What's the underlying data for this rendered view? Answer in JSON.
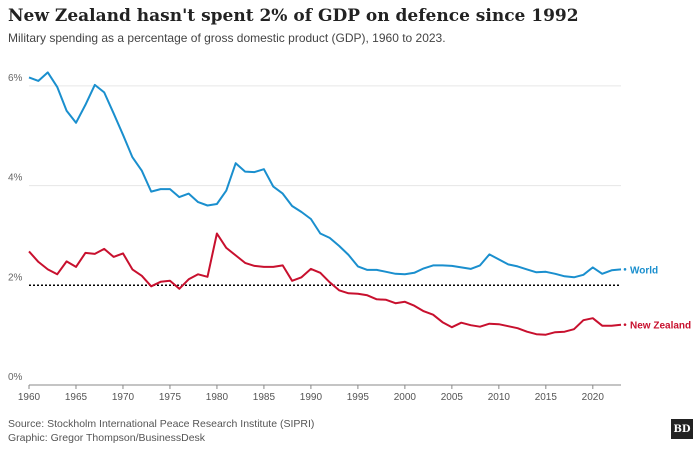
{
  "title": "New Zealand hasn't spent 2% of GDP on defence since 1992",
  "subtitle": "Military spending as a percentage of gross domestic product (GDP), 1960 to 2023.",
  "source": "Source: Stockholm International Peace Research Institute (SIPRI)",
  "graphic": "Graphic: Gregor Thompson/BusinessDesk",
  "logo": "BD",
  "colors": {
    "world": "#1a8fce",
    "nz": "#c8102e",
    "reference": "#000000",
    "grid": "#e6e6e6"
  },
  "chart_data": {
    "type": "line",
    "title": "New Zealand hasn't spent 2% of GDP on defence since 1992",
    "xlabel": "",
    "ylabel": "",
    "xlim": [
      1960,
      2023
    ],
    "ylim": [
      0,
      6.6
    ],
    "grid": true,
    "x_ticks": [
      1960,
      1965,
      1970,
      1975,
      1980,
      1985,
      1990,
      1995,
      2000,
      2005,
      2010,
      2015,
      2020
    ],
    "y_ticks": [
      {
        "value": 0,
        "label": "0%"
      },
      {
        "value": 2,
        "label": "2%"
      },
      {
        "value": 4,
        "label": "4%"
      },
      {
        "value": 6,
        "label": "6%"
      }
    ],
    "reference_line": 2,
    "x": [
      1960,
      1961,
      1962,
      1963,
      1964,
      1965,
      1966,
      1967,
      1968,
      1969,
      1970,
      1971,
      1972,
      1973,
      1974,
      1975,
      1976,
      1977,
      1978,
      1979,
      1980,
      1981,
      1982,
      1983,
      1984,
      1985,
      1986,
      1987,
      1988,
      1989,
      1990,
      1991,
      1992,
      1993,
      1994,
      1995,
      1996,
      1997,
      1998,
      1999,
      2000,
      2001,
      2002,
      2003,
      2004,
      2005,
      2006,
      2007,
      2008,
      2009,
      2010,
      2011,
      2012,
      2013,
      2014,
      2015,
      2016,
      2017,
      2018,
      2019,
      2020,
      2021,
      2022,
      2023
    ],
    "series": [
      {
        "name": "World",
        "color": "#1a8fce",
        "values": [
          6.17,
          6.1,
          6.27,
          5.98,
          5.5,
          5.26,
          5.62,
          6.02,
          5.87,
          5.45,
          5.02,
          4.57,
          4.3,
          3.88,
          3.93,
          3.93,
          3.77,
          3.84,
          3.67,
          3.6,
          3.63,
          3.9,
          4.45,
          4.28,
          4.27,
          4.33,
          3.98,
          3.84,
          3.59,
          3.47,
          3.33,
          3.04,
          2.95,
          2.79,
          2.61,
          2.38,
          2.31,
          2.31,
          2.27,
          2.23,
          2.22,
          2.25,
          2.34,
          2.4,
          2.4,
          2.39,
          2.36,
          2.33,
          2.4,
          2.62,
          2.52,
          2.42,
          2.38,
          2.32,
          2.26,
          2.27,
          2.23,
          2.18,
          2.16,
          2.21,
          2.36,
          2.23,
          2.3,
          2.32
        ]
      },
      {
        "name": "New Zealand",
        "color": "#c8102e",
        "values": [
          2.68,
          2.47,
          2.32,
          2.22,
          2.48,
          2.37,
          2.65,
          2.63,
          2.73,
          2.57,
          2.64,
          2.32,
          2.19,
          1.98,
          2.07,
          2.09,
          1.93,
          2.12,
          2.22,
          2.17,
          3.04,
          2.75,
          2.6,
          2.45,
          2.39,
          2.37,
          2.37,
          2.4,
          2.09,
          2.16,
          2.33,
          2.25,
          2.06,
          1.9,
          1.84,
          1.83,
          1.8,
          1.72,
          1.71,
          1.64,
          1.67,
          1.59,
          1.48,
          1.41,
          1.26,
          1.16,
          1.25,
          1.2,
          1.17,
          1.23,
          1.22,
          1.18,
          1.14,
          1.07,
          1.02,
          1.01,
          1.06,
          1.07,
          1.12,
          1.3,
          1.34,
          1.19,
          1.19,
          1.21
        ]
      }
    ]
  }
}
